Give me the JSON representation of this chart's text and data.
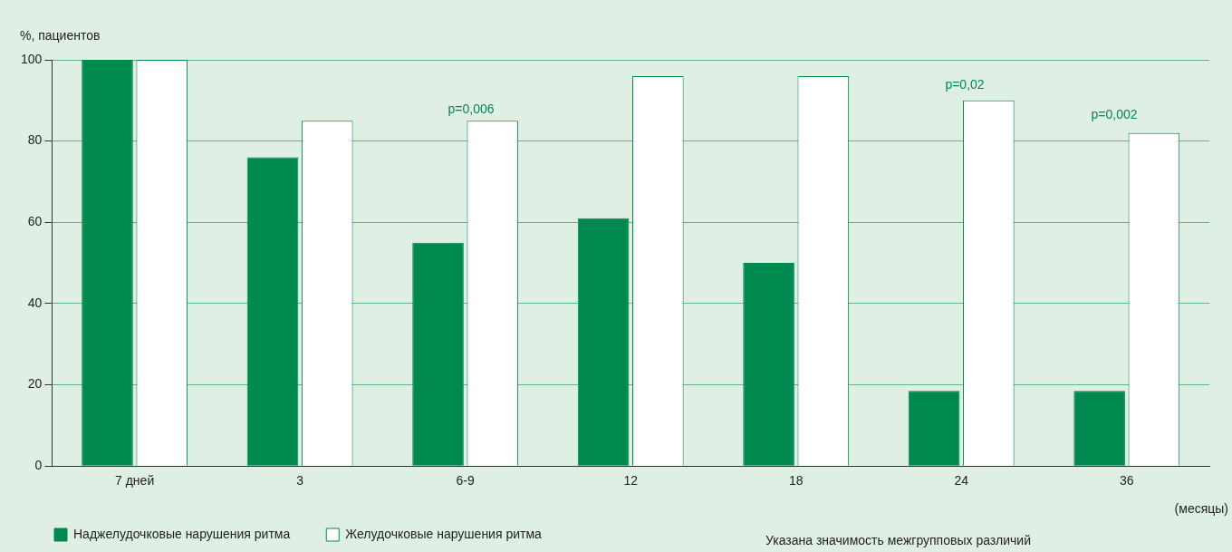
{
  "chart_data": {
    "type": "bar",
    "ylabel": "%, пациентов",
    "xlabel": "(месяцы)",
    "categories": [
      "7 дней",
      "3",
      "6-9",
      "12",
      "18",
      "24",
      "36"
    ],
    "series": [
      {
        "name": "Наджелудочковые нарушения ритма",
        "color": "#00894f",
        "values": [
          100,
          76,
          55,
          61,
          50,
          18.5,
          18.5
        ]
      },
      {
        "name": "Желудочковые нарушения ритма",
        "color": "#ffffff",
        "values": [
          100,
          85,
          85,
          96,
          96,
          90,
          82
        ]
      }
    ],
    "ylim": [
      0,
      100
    ],
    "yticks": [
      0,
      20,
      40,
      60,
      80,
      100
    ],
    "grid": "y",
    "legend": "bottom",
    "annotations": [
      "p=0,006",
      "p=0,02",
      "p=0,002",
      "Указана значимость межгрупповых различий"
    ]
  }
}
